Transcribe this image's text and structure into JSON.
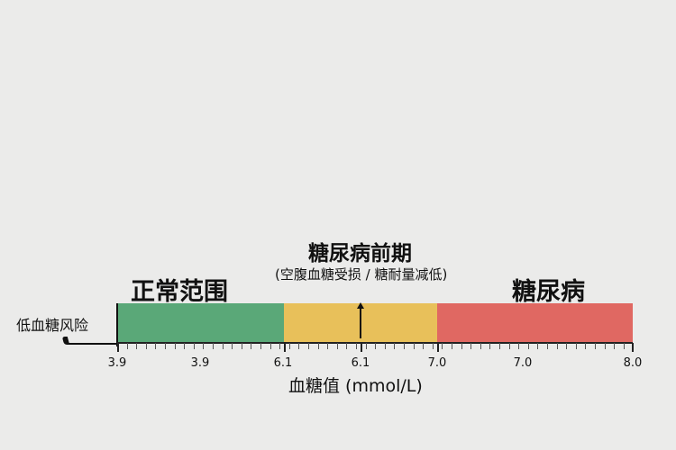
{
  "labels": {
    "normal": "正常范围",
    "prediabetes": "糖尿病前期",
    "prediabetes_sub": "(空腹血糖受损 / 糖耐量减低)",
    "diabetes": "糖尿病",
    "hypoglycemia": "低血糖风险",
    "axis_title": "血糖值 (mmol/L)"
  },
  "tick_labels": [
    "3.9",
    "3.9",
    "6.1",
    "6.1",
    "7.0",
    "7.0",
    "8.0"
  ],
  "chart_data": {
    "type": "range-bar",
    "xlabel": "血糖值 (mmol/L)",
    "segments": [
      {
        "name": "正常范围",
        "from": 3.9,
        "to": 6.1,
        "color": "#5aa878"
      },
      {
        "name": "糖尿病前期",
        "from": 6.1,
        "to": 7.0,
        "color": "#e8c05a"
      },
      {
        "name": "糖尿病",
        "from": 7.0,
        "to": 8.0,
        "color": "#e06862"
      }
    ],
    "below_range": {
      "name": "低血糖风险",
      "threshold": 3.9
    }
  }
}
